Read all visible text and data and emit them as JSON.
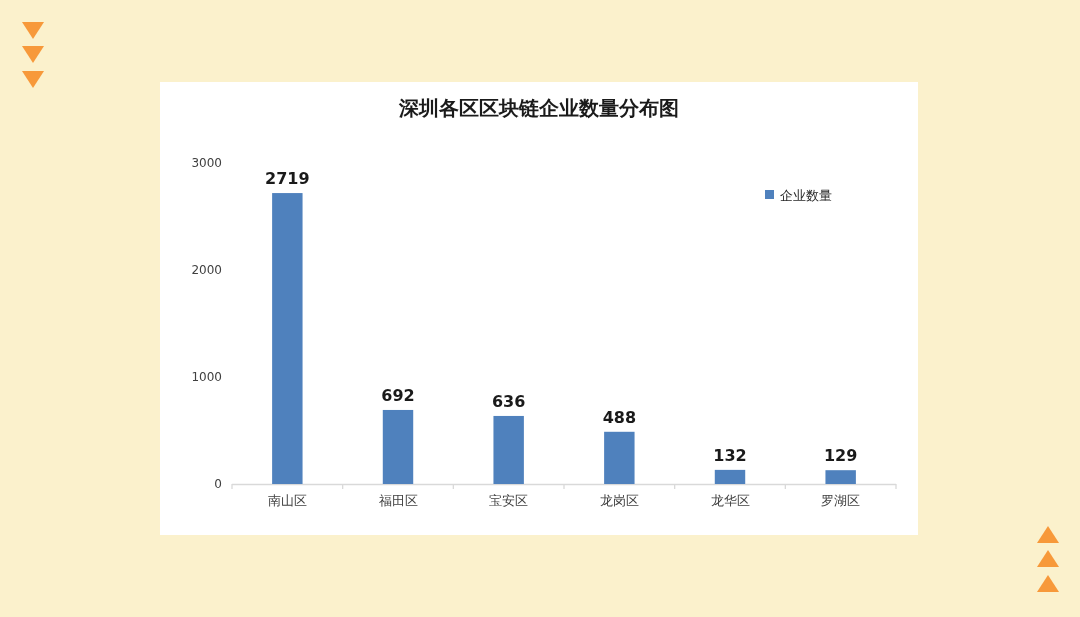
{
  "chart_data": {
    "type": "bar",
    "title": "深圳各区区块链企业数量分布图",
    "categories": [
      "南山区",
      "福田区",
      "宝安区",
      "龙岗区",
      "龙华区",
      "罗湖区"
    ],
    "series": [
      {
        "name": "企业数量",
        "color": "#4f81bd",
        "values": [
          2719,
          692,
          636,
          488,
          132,
          129
        ]
      }
    ],
    "ylim": [
      0,
      3000
    ],
    "yticks": [
      0,
      1000,
      2000,
      3000
    ],
    "data_labels": true,
    "legend": "top right"
  }
}
